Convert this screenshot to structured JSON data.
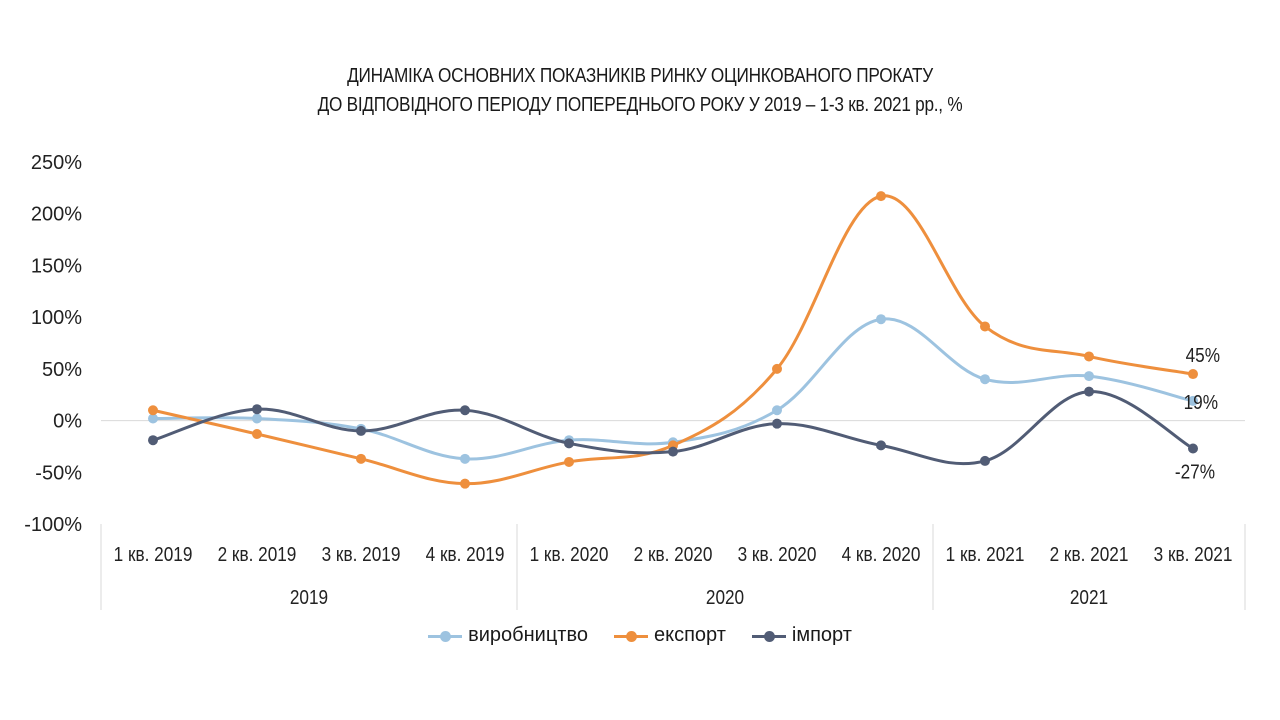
{
  "title": {
    "line1": "ДИНАМІКА ОСНОВНИХ ПОКАЗНИКІВ РИНКУ ОЦИНКОВАНОГО ПРОКАТУ",
    "line2": "ДО ВІДПОВІДНОГО ПЕРІОДУ ПОПЕРЕДНЬОГО РОКУ У 2019 – 1-3 кв. 2021 рр., %"
  },
  "chart_data": {
    "type": "line",
    "title": "ДИНАМІКА ОСНОВНИХ ПОКАЗНИКІВ РИНКУ ОЦИНКОВАНОГО ПРОКАТУ ДО ВІДПОВІДНОГО ПЕРІОДУ ПОПЕРЕДНЬОГО РОКУ У 2019 – 1-3 кв. 2021 рр., %",
    "categories": [
      "1 кв. 2019",
      "2 кв. 2019",
      "3 кв. 2019",
      "4 кв. 2019",
      "1 кв. 2020",
      "2 кв. 2020",
      "3 кв. 2020",
      "4 кв. 2020",
      "1 кв. 2021",
      "2 кв. 2021",
      "3 кв. 2021"
    ],
    "groups": [
      {
        "label": "2019",
        "count": 4
      },
      {
        "label": "2020",
        "count": 4
      },
      {
        "label": "2021",
        "count": 3
      }
    ],
    "ylim": [
      -100,
      250
    ],
    "yticks": [
      250,
      200,
      150,
      100,
      50,
      0,
      -50,
      -100
    ],
    "ytick_labels": [
      "250%",
      "200%",
      "150%",
      "100%",
      "50%",
      "0%",
      "-50%",
      "-100%"
    ],
    "grid": false,
    "legend_position": "bottom",
    "series": [
      {
        "name": "виробництво",
        "color": "#9dc3e0",
        "values": [
          2,
          2,
          -8,
          -37,
          -19,
          -21,
          10,
          98,
          40,
          43,
          19
        ],
        "end_label": "19%"
      },
      {
        "name": "експорт",
        "color": "#ee8f3d",
        "values": [
          10,
          -13,
          -37,
          -61,
          -40,
          -24,
          50,
          217,
          91,
          62,
          45
        ],
        "end_label": "45%"
      },
      {
        "name": "імпорт",
        "color": "#515c75",
        "values": [
          -19,
          11,
          -10,
          10,
          -22,
          -30,
          -3,
          -24,
          -39,
          28,
          -27
        ],
        "end_label": "-27%"
      }
    ]
  }
}
